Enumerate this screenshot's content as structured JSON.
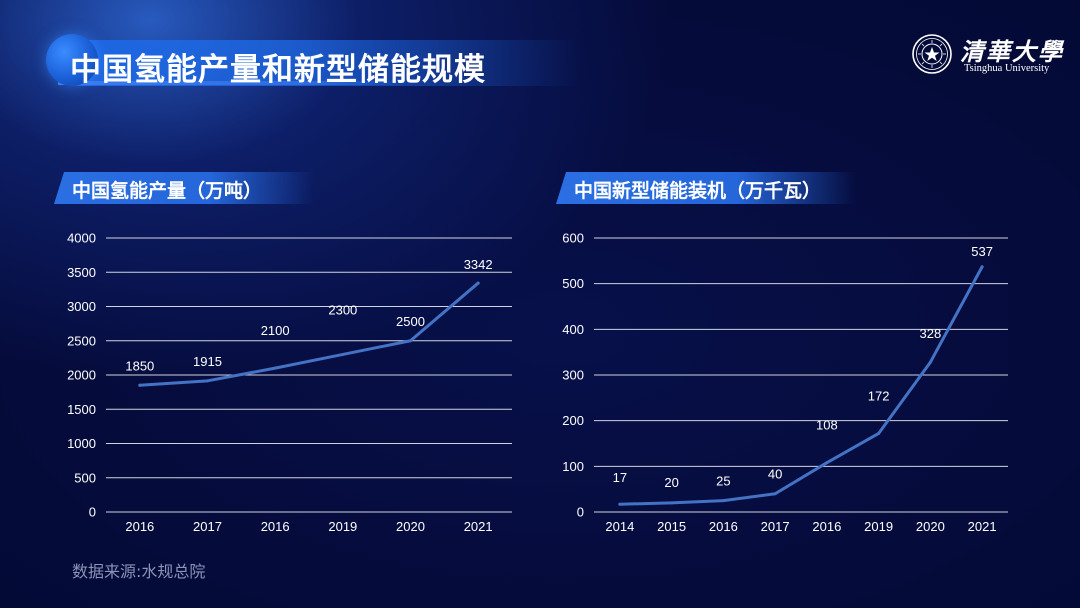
{
  "page": {
    "title": "中国氢能产量和新型储能规模",
    "source": "数据来源:水规总院"
  },
  "logo": {
    "name": "清華大學",
    "subtitle": "Tsinghua University"
  },
  "colors": {
    "line": "#4472c4",
    "accent": "#2a6fe3",
    "background": "#050b3a",
    "gridline": "#e6e9f2"
  },
  "chart_data": [
    {
      "type": "line",
      "title": "中国氢能产量（万吨）",
      "categories": [
        "2016",
        "2017",
        "2016",
        "2019",
        "2020",
        "2021"
      ],
      "values": [
        1850,
        1915,
        2100,
        2300,
        2500,
        3342
      ],
      "data_labels": [
        "1850",
        "1915",
        "2100",
        "2300",
        "2500",
        "3342"
      ],
      "ylim": [
        0,
        4000
      ],
      "yticks": [
        "0",
        "500",
        "1000",
        "1500",
        "2000",
        "2500",
        "3000",
        "3500",
        "4000"
      ],
      "grid": true,
      "legend": "none"
    },
    {
      "type": "line",
      "title": "中国新型储能装机（万千瓦）",
      "categories": [
        "2014",
        "2015",
        "2016",
        "2017",
        "2016",
        "2019",
        "2020",
        "2021"
      ],
      "values": [
        17,
        20,
        25,
        40,
        108,
        172,
        328,
        537
      ],
      "data_labels": [
        "17",
        "20",
        "25",
        "40",
        "108",
        "172",
        "328",
        "537"
      ],
      "ylim": [
        0,
        600
      ],
      "yticks": [
        "0",
        "100",
        "200",
        "300",
        "400",
        "500",
        "600"
      ],
      "grid": true,
      "legend": "none"
    }
  ]
}
